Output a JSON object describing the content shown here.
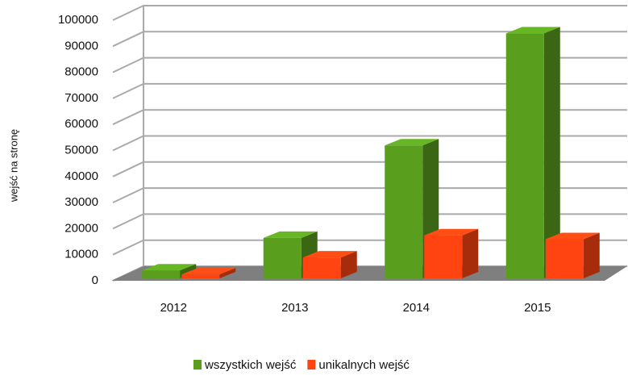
{
  "chart_data": {
    "type": "bar3d",
    "y_axis_label": "wejść na stronę",
    "categories": [
      "2012",
      "2013",
      "2014",
      "2015"
    ],
    "series": [
      {
        "name": "wszystkich wejść",
        "color": "#5a9e1e",
        "values": [
          3000,
          15500,
          51000,
          94000
        ]
      },
      {
        "name": "unikalnych wejść",
        "color": "#ff4411",
        "values": [
          1500,
          8000,
          16500,
          15000
        ]
      }
    ],
    "ylim": [
      0,
      100000
    ],
    "yticks": [
      0,
      10000,
      20000,
      30000,
      40000,
      50000,
      60000,
      70000,
      80000,
      90000,
      100000
    ],
    "grid": true,
    "legend": "bottom"
  }
}
